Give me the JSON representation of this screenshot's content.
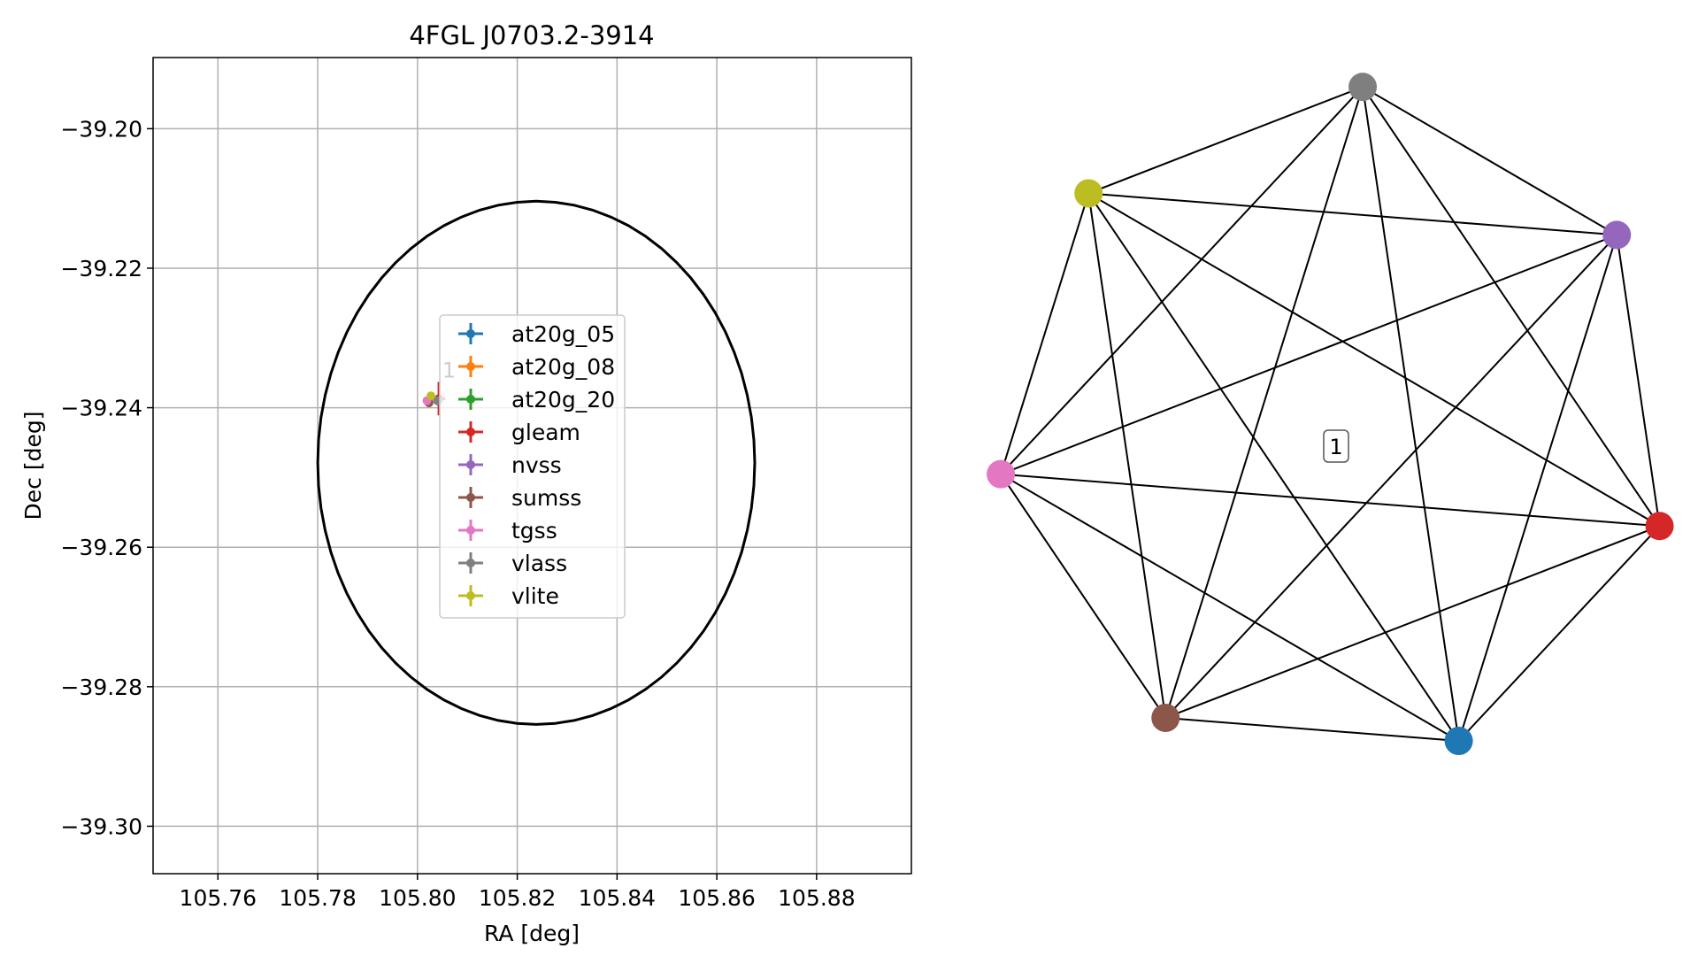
{
  "chart_data": [
    {
      "type": "scatter",
      "title": "4FGL J0703.2-3914",
      "xlabel": "RA [deg]",
      "ylabel": "Dec [deg]",
      "xlim": [
        105.747,
        105.899
      ],
      "ylim": [
        -39.3068,
        -39.1898
      ],
      "xticks": [
        105.76,
        105.78,
        105.8,
        105.82,
        105.84,
        105.86,
        105.88
      ],
      "xtick_labels": [
        "105.76",
        "105.78",
        "105.80",
        "105.82",
        "105.84",
        "105.86",
        "105.88"
      ],
      "yticks": [
        -39.2,
        -39.22,
        -39.24,
        -39.26,
        -39.28,
        -39.3
      ],
      "ytick_labels": [
        "−39.20",
        "−39.22",
        "−39.24",
        "−39.26",
        "−39.28",
        "−39.30"
      ],
      "grid": true,
      "legend_position": "center",
      "ellipse": {
        "center": [
          105.8238,
          -39.2479
        ],
        "semi_axis_ra": 0.0438,
        "semi_axis_dec": 0.0375,
        "color": "#000000"
      },
      "source_label": "1",
      "series": [
        {
          "name": "at20g_05",
          "color": "#1f77b4",
          "x": 105.8041,
          "y": -39.239,
          "xerr": 0.0001,
          "yerr": 0.0001
        },
        {
          "name": "at20g_08",
          "color": "#ff7f0e",
          "x": 105.8041,
          "y": -39.239,
          "xerr": 0.0001,
          "yerr": 0.0001
        },
        {
          "name": "at20g_20",
          "color": "#2ca02c",
          "x": 105.8041,
          "y": -39.239,
          "xerr": 0.0001,
          "yerr": 0.0001
        },
        {
          "name": "gleam",
          "color": "#d62728",
          "x": 105.8043,
          "y": -39.2387,
          "xerr": 0.0013,
          "yerr": 0.0024
        },
        {
          "name": "nvss",
          "color": "#9467bd",
          "x": 105.804,
          "y": -39.239,
          "xerr": 0.0002,
          "yerr": 0.0002
        },
        {
          "name": "sumss",
          "color": "#8c564b",
          "x": 105.8023,
          "y": -39.2393,
          "xerr": 0.0003,
          "yerr": 0.0003
        },
        {
          "name": "tgss",
          "color": "#e377c2",
          "x": 105.8019,
          "y": -39.239,
          "xerr": 0.0002,
          "yerr": 0.0002
        },
        {
          "name": "vlass",
          "color": "#7f7f7f",
          "x": 105.8041,
          "y": -39.239,
          "xerr": 0.0001,
          "yerr": 0.0001
        },
        {
          "name": "vlite",
          "color": "#bcbd22",
          "x": 105.8027,
          "y": -39.2383,
          "xerr": 0.0002,
          "yerr": 0.0002
        }
      ]
    },
    {
      "type": "network",
      "layout": "circular",
      "nodes": [
        {
          "id": "vlass",
          "color": "#7f7f7f"
        },
        {
          "id": "nvss",
          "color": "#9467bd"
        },
        {
          "id": "gleam",
          "color": "#d62728"
        },
        {
          "id": "at20g_05",
          "color": "#1f77b4"
        },
        {
          "id": "sumss",
          "color": "#8c564b"
        },
        {
          "id": "tgss",
          "color": "#e377c2"
        },
        {
          "id": "vlite",
          "color": "#bcbd22"
        }
      ],
      "edges": "all pairs",
      "center_label": "1"
    }
  ]
}
